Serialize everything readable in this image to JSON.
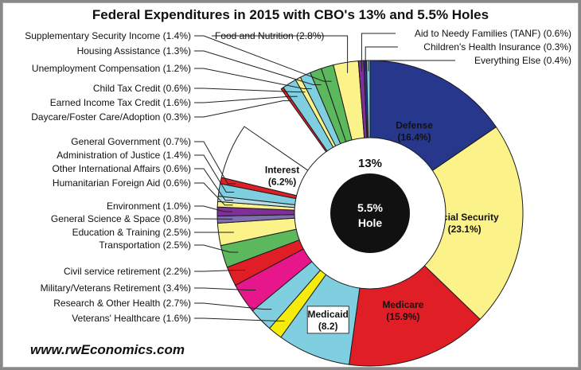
{
  "title": "Federal  Expenditures in 2015 with CBO's 13% and 5.5% Holes",
  "website": "www.rwEconomics.com",
  "hole_outer_label": "13%",
  "hole_inner_label_1": "5.5%",
  "hole_inner_label_2": "Hole",
  "chart_data": {
    "type": "pie",
    "title": "Federal  Expenditures in 2015 with CBO's 13% and 5.5% Holes",
    "unit": "%",
    "holes": [
      {
        "label": "13%",
        "value": 13
      },
      {
        "label": "5.5% Hole",
        "value": 5.5
      }
    ],
    "slices": [
      {
        "name": "Defense",
        "value": 16.4,
        "color": "#26378c",
        "label": "Defense",
        "value_label": "(16.4%)"
      },
      {
        "name": "Social Security",
        "value": 23.1,
        "color": "#fbf28a",
        "label": "Social Security",
        "value_label": "(23.1%)"
      },
      {
        "name": "Medicare",
        "value": 15.9,
        "color": "#e01e25",
        "label": "Medicare",
        "value_label": "(15.9%)"
      },
      {
        "name": "Medicaid",
        "value": 8.2,
        "color": "#7fcfe1",
        "label": "Medicaid",
        "value_label": "(8.2)"
      },
      {
        "name": "Veterans' Healthcare",
        "value": 1.6,
        "color": "#f5eb0c",
        "label": "Veterans' Healthcare (1.6%)"
      },
      {
        "name": "Research & Other Health",
        "value": 2.7,
        "color": "#7fcfe1",
        "label": "Research & Other Health (2.7%)"
      },
      {
        "name": "Military/Veterans Retirement",
        "value": 3.4,
        "color": "#e8168b",
        "label": "Military/Veterans Retirement  (3.4%)"
      },
      {
        "name": "Civil service retirement",
        "value": 2.2,
        "color": "#e01e25",
        "label": "Civil service retirement  (2.2%)"
      },
      {
        "name": "Transportation",
        "value": 2.5,
        "color": "#5cb85c",
        "label": "Transportation  (2.5%)"
      },
      {
        "name": "Education & Training",
        "value": 2.5,
        "color": "#fbf28a",
        "label": "Education & Training (2.5%)"
      },
      {
        "name": "General Science & Space",
        "value": 0.8,
        "color": "#7f6fb0",
        "label": "General Science & Space (0.8%)"
      },
      {
        "name": "Environment",
        "value": 1.0,
        "color": "#7f2f97",
        "label": "Environment (1.0%)"
      },
      {
        "name": "Humanitarian Foreign  Aid",
        "value": 0.6,
        "color": "#fbf28a",
        "label": "Humanitarian Foreign  Aid (0.6%)"
      },
      {
        "name": "Other International Affairs",
        "value": 0.6,
        "color": "#b8dde8",
        "label": "Other International Affairs (0.6%)"
      },
      {
        "name": "Administration of Justice",
        "value": 1.4,
        "color": "#7fcfe1",
        "label": "Administration of Justice (1.4%)"
      },
      {
        "name": "General Government",
        "value": 0.7,
        "color": "#e01e25",
        "label": "General Government (0.7%)"
      },
      {
        "name": "Interest",
        "value": 6.2,
        "color": "#ffffff",
        "label": "Interest",
        "value_label": "(6.2%)"
      },
      {
        "name": "Daycare/Foster Care/Adoption",
        "value": 0.3,
        "color": "#e01e25",
        "label": "Daycare/Foster Care/Adoption (0.3%)"
      },
      {
        "name": "Earned Income Tax Credit",
        "value": 1.6,
        "color": "#7fcfe1",
        "label": "Earned Income Tax Credit (1.6%)"
      },
      {
        "name": "Child Tax Credit",
        "value": 0.6,
        "color": "#fbf28a",
        "label": "Child Tax Credit (0.6%)"
      },
      {
        "name": "Unemployment Compensation",
        "value": 1.2,
        "color": "#7fcfe1",
        "label": "Unemployment Compensation (1.2%)"
      },
      {
        "name": "Housing Assistance",
        "value": 1.3,
        "color": "#5cb85c",
        "label": "Housing Assistance (1.3%)"
      },
      {
        "name": "Supplementary Security Income",
        "value": 1.4,
        "color": "#5cb85c",
        "label": "Supplementary Security Income (1.4%)"
      },
      {
        "name": "Food and Nutrition",
        "value": 2.8,
        "color": "#fbf28a",
        "label": "Food and Nutrition (2.8%)"
      },
      {
        "name": "Aid to Needy Families (TANF)",
        "value": 0.6,
        "color": "#7f2f97",
        "label": "Aid to Needy Families (TANF) (0.6%)"
      },
      {
        "name": "Children's Health Insurance",
        "value": 0.3,
        "color": "#26378c",
        "label": "Children's Health Insurance (0.3%)"
      },
      {
        "name": "Everything Else",
        "value": 0.4,
        "color": "#7fcfe1",
        "label": "Everything Else (0.4%)"
      }
    ]
  }
}
